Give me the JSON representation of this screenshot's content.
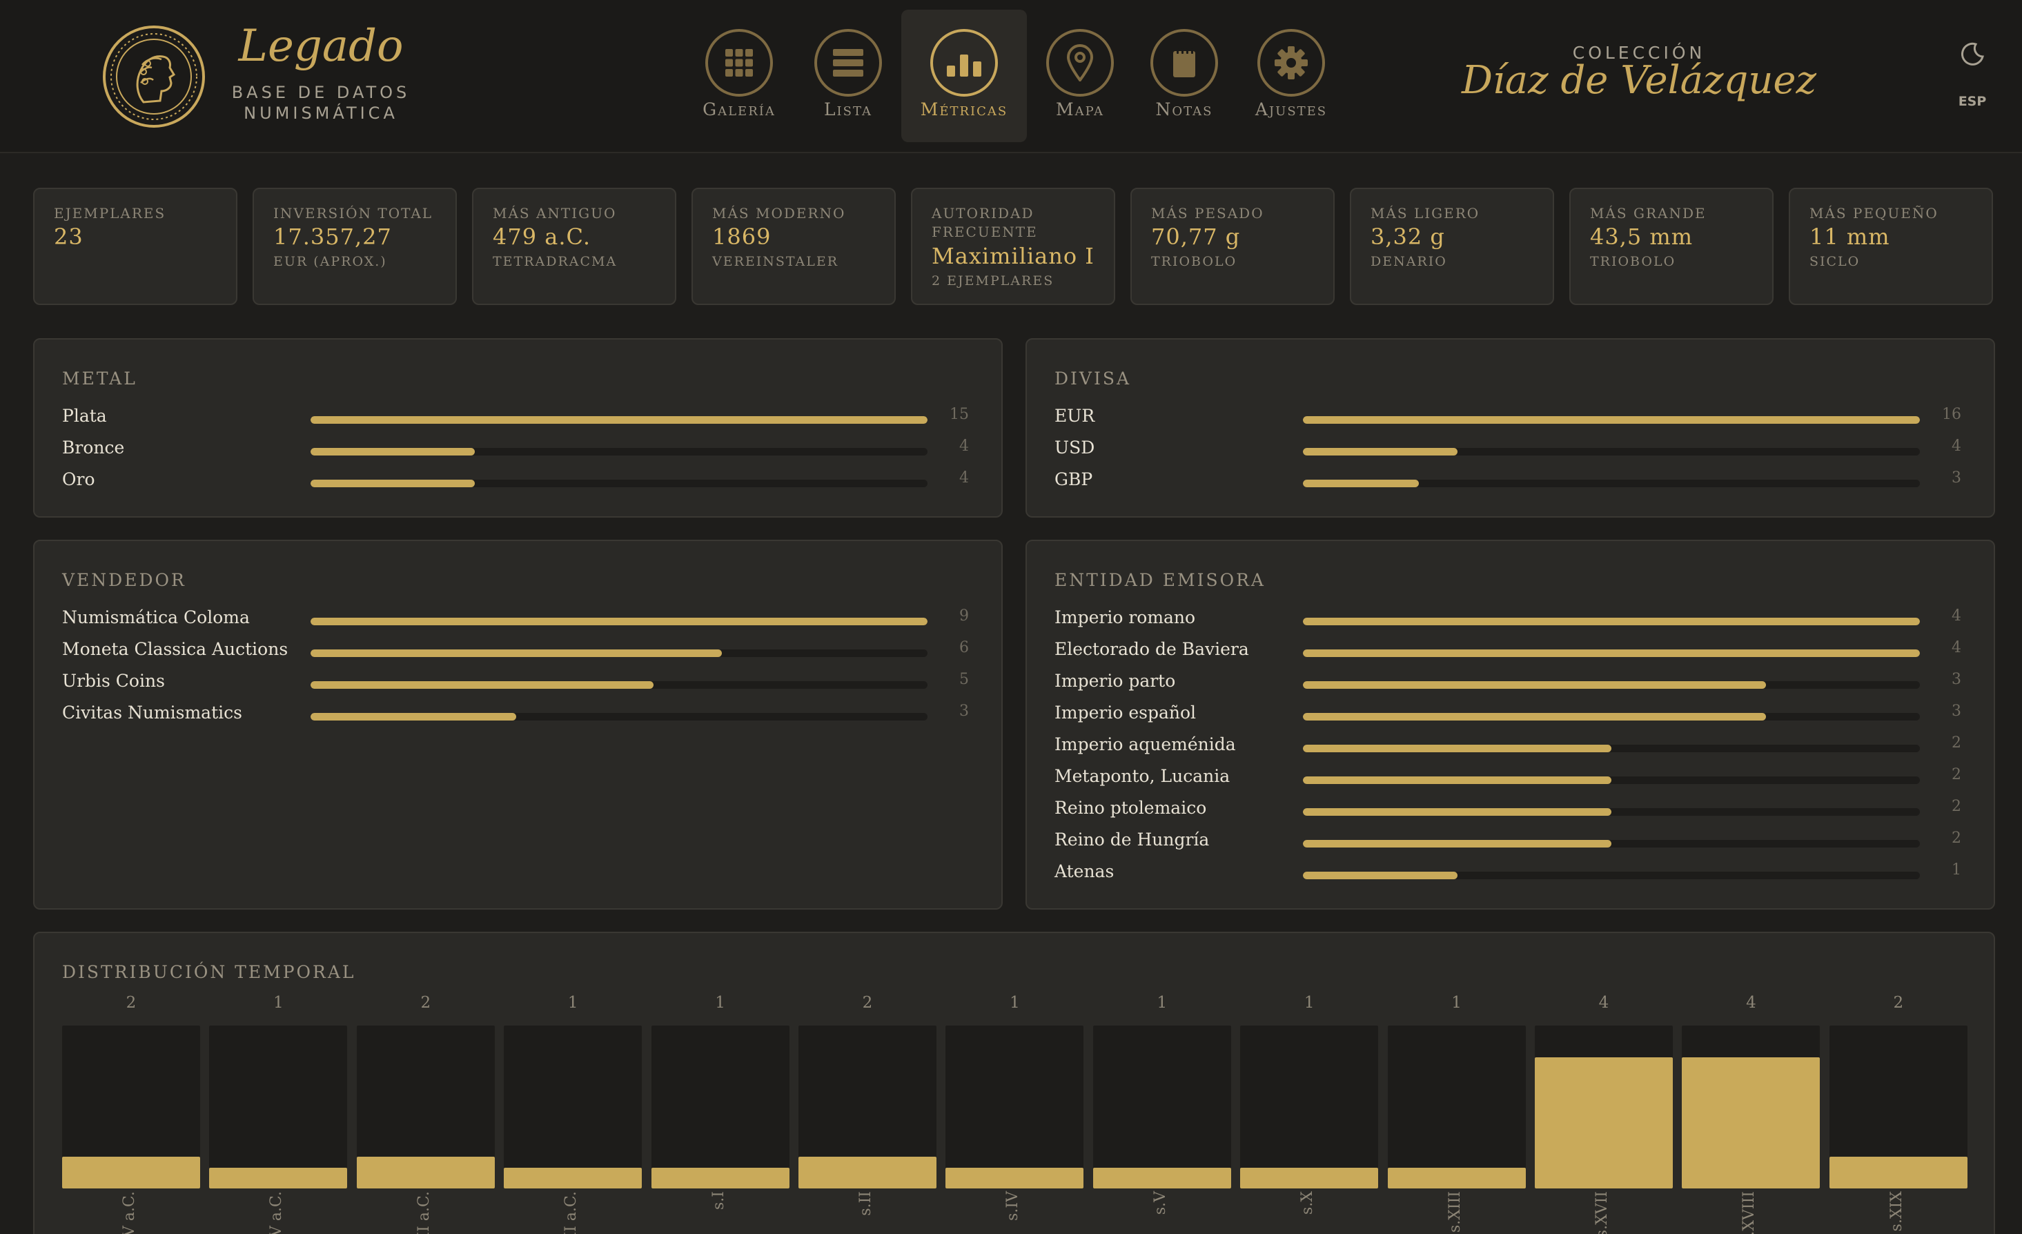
{
  "brand": {
    "name": "Legado",
    "subtitle_line1": "BASE DE DATOS",
    "subtitle_line2": "NUMISMÁTICA"
  },
  "nav": [
    {
      "label": "Galería",
      "icon": "grid-icon",
      "active": false
    },
    {
      "label": "Lista",
      "icon": "list-icon",
      "active": false
    },
    {
      "label": "Métricas",
      "icon": "bar-chart-icon",
      "active": true
    },
    {
      "label": "Mapa",
      "icon": "map-pin-icon",
      "active": false
    },
    {
      "label": "Notas",
      "icon": "notepad-icon",
      "active": false
    },
    {
      "label": "Ajustes",
      "icon": "gear-icon",
      "active": false
    }
  ],
  "collection": {
    "label": "COLECCIÓN",
    "name": "Díaz de Velázquez"
  },
  "header_right": {
    "theme_icon": "moon-icon",
    "language": "ESP"
  },
  "stats": [
    {
      "label": "Ejemplares",
      "value": "23",
      "sub": ""
    },
    {
      "label": "Inversión total",
      "value": "17.357,27",
      "sub": "EUR (aprox.)"
    },
    {
      "label": "Más antiguo",
      "value": "479 a.C.",
      "sub": "Tetradracma"
    },
    {
      "label": "Más moderno",
      "value": "1869",
      "sub": "Vereinstaler"
    },
    {
      "label": "Autoridad frecuente",
      "value": "Maximiliano I",
      "sub": "2 ejemplares"
    },
    {
      "label": "Más pesado",
      "value": "70,77 g",
      "sub": "Triobolo"
    },
    {
      "label": "Más ligero",
      "value": "3,32 g",
      "sub": "Denario"
    },
    {
      "label": "Más grande",
      "value": "43,5 mm",
      "sub": "Triobolo"
    },
    {
      "label": "Más pequeño",
      "value": "11 mm",
      "sub": "Siclo"
    }
  ],
  "panels": {
    "metal": {
      "title": "Metal",
      "max": 15,
      "rows": [
        {
          "label": "Plata",
          "count": 15
        },
        {
          "label": "Bronce",
          "count": 4
        },
        {
          "label": "Oro",
          "count": 4
        }
      ]
    },
    "divisa": {
      "title": "Divisa",
      "max": 16,
      "rows": [
        {
          "label": "EUR",
          "count": 16
        },
        {
          "label": "USD",
          "count": 4
        },
        {
          "label": "GBP",
          "count": 3
        }
      ]
    },
    "vendedor": {
      "title": "Vendedor",
      "max": 9,
      "rows": [
        {
          "label": "Numismática Coloma",
          "count": 9
        },
        {
          "label": "Moneta Classica Auctions",
          "count": 6
        },
        {
          "label": "Urbis Coins",
          "count": 5
        },
        {
          "label": "Civitas Numismatics",
          "count": 3
        }
      ]
    },
    "entidad": {
      "title": "Entidad emisora",
      "max": 4,
      "rows": [
        {
          "label": "Imperio romano",
          "count": 4
        },
        {
          "label": "Electorado de Baviera",
          "count": 4
        },
        {
          "label": "Imperio parto",
          "count": 3
        },
        {
          "label": "Imperio español",
          "count": 3
        },
        {
          "label": "Imperio aqueménida",
          "count": 2
        },
        {
          "label": "Metaponto, Lucania",
          "count": 2
        },
        {
          "label": "Reino ptolemaico",
          "count": 2
        },
        {
          "label": "Reino de Hungría",
          "count": 2
        },
        {
          "label": "Atenas",
          "count": 1
        }
      ]
    }
  },
  "chart_data": {
    "type": "bar",
    "title": "Distribución temporal",
    "categories": [
      "s.V a.C.",
      "s.IV a.C.",
      "s.III a.C.",
      "s.II a.C.",
      "s.I",
      "s.II",
      "s.IV",
      "s.V",
      "s.X",
      "s.XIII",
      "s.XVII",
      "s.XVIII",
      "s.XIX"
    ],
    "values": [
      2,
      1,
      2,
      1,
      1,
      2,
      1,
      1,
      1,
      1,
      4,
      4,
      2
    ],
    "ylim": [
      0,
      4
    ],
    "grid": false
  },
  "colors": {
    "accent": "#c9aa5a",
    "background": "#1e1d1b",
    "panel": "#2a2926"
  }
}
